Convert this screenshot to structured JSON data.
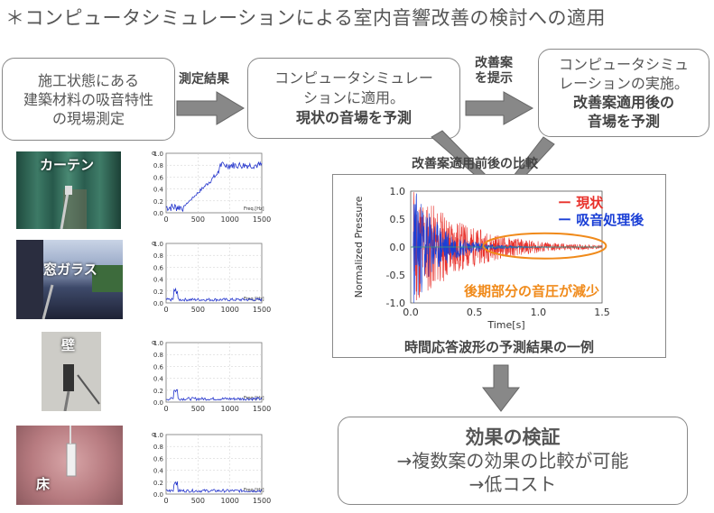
{
  "title": "＊コンピュータシミュレーションによる室内音響改善の検討への適用",
  "box1": {
    "line1": "施工状態にある",
    "line2": "建築材料の吸音特性",
    "line3": "の現場測定"
  },
  "arrow1_label": "測定結果",
  "box2": {
    "line1": "コンピュータシミュレー",
    "line2": "ションに適用。",
    "line3": "現状の音場を予測"
  },
  "arrow2_label": {
    "line1": "改善案",
    "line2": "を提示"
  },
  "box3": {
    "line1": "コンピュータシミュ",
    "line2": "レーションの実施。",
    "line3": "改善案適用後の",
    "line4": "音場を予測"
  },
  "compare_label": "改善案適用前後の比較",
  "materials": [
    {
      "name": "カーテン"
    },
    {
      "name": "窓ガラス"
    },
    {
      "name": "壁"
    },
    {
      "name": "床"
    }
  ],
  "absorption_charts": {
    "y_ticks": [
      "1.0",
      "0.8",
      "0.6",
      "0.4",
      "0.2",
      "0.0"
    ],
    "x_ticks": [
      "0",
      "500",
      "1000",
      "1500"
    ],
    "ylabel": "α",
    "xlabel": "Freq.[Hz]"
  },
  "response_chart": {
    "type": "line",
    "ylabel": "Normalized Pressure",
    "xlabel": "Time[s]",
    "y_ticks": [
      "1.0",
      "0.5",
      "0.0",
      "-0.5",
      "-1.0"
    ],
    "x_ticks": [
      "0.0",
      "0.5",
      "1.0",
      "1.5"
    ],
    "xlim": [
      0,
      1.5
    ],
    "ylim": [
      -1.0,
      1.0
    ],
    "series": [
      {
        "name": "現状",
        "color": "#e8302a"
      },
      {
        "name": "吸音処理後",
        "color": "#1a3fd6"
      }
    ],
    "annotation": "後期部分の音圧が減少",
    "annotation_color": "#f08a1a",
    "caption": "時間応答波形の予測結果の一例"
  },
  "legend_dash": "ー",
  "box5": {
    "line1": "効果の検証",
    "line2": "→複数案の効果の比較が可能",
    "line3": "→低コスト"
  }
}
